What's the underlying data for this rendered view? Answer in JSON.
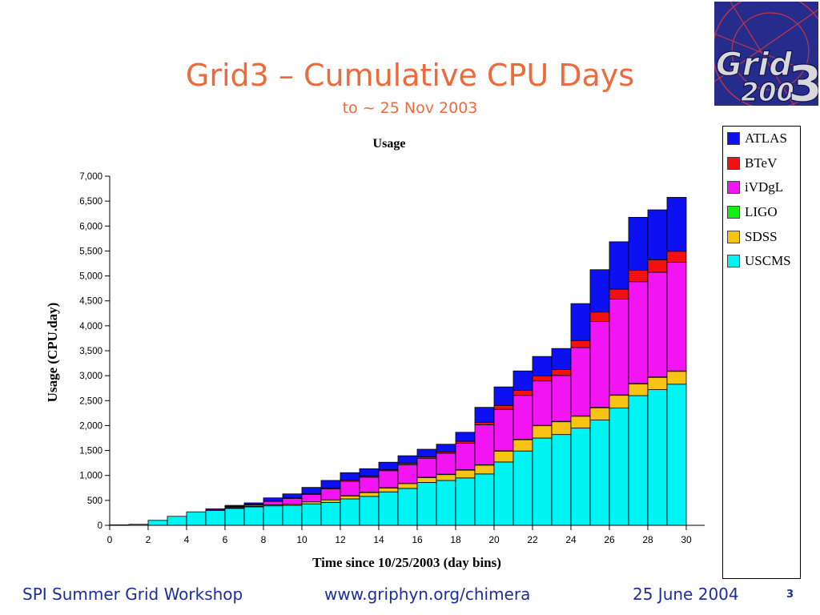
{
  "slide": {
    "title": "Grid3 – Cumulative CPU Days",
    "subtitle": "to ~ 25 Nov 2003",
    "logo_text": "Grid3 2003"
  },
  "footer": {
    "left": "SPI Summer Grid Workshop",
    "center": "www.griphyn.org/chimera",
    "right": "25 June 2004",
    "page_number": "3"
  },
  "colors": {
    "title": "#ee6a3a",
    "footer": "#1a2f9c"
  },
  "chart_data": {
    "type": "bar",
    "stacked": true,
    "title": "Usage",
    "xlabel": "Time since 10/25/2003 (day bins)",
    "ylabel": "Usage (CPU.day)",
    "ylim": [
      0,
      7000
    ],
    "xlim": [
      0,
      30
    ],
    "yticks": [
      "0",
      "500",
      "1,000",
      "1,500",
      "2,000",
      "2,500",
      "3,000",
      "3,500",
      "4,000",
      "4,500",
      "5,000",
      "5,500",
      "6,000",
      "6,500",
      "7,000"
    ],
    "xticks": [
      "0",
      "2",
      "4",
      "6",
      "8",
      "10",
      "12",
      "14",
      "16",
      "18",
      "20",
      "22",
      "24",
      "26",
      "28",
      "30"
    ],
    "legend_position": "right",
    "x": [
      1,
      2,
      3,
      4,
      5,
      6,
      7,
      8,
      9,
      10,
      11,
      12,
      13,
      14,
      15,
      16,
      17,
      18,
      19,
      20,
      21,
      22,
      23,
      24,
      25,
      26,
      27,
      28,
      29,
      30
    ],
    "series": [
      {
        "name": "USCMS",
        "color": "#00f4f4",
        "values": [
          10,
          20,
          100,
          180,
          270,
          300,
          340,
          370,
          390,
          400,
          430,
          460,
          530,
          580,
          670,
          740,
          860,
          900,
          950,
          1030,
          1270,
          1490,
          1750,
          1820,
          1950,
          2110,
          2350,
          2600,
          2720,
          2830
        ]
      },
      {
        "name": "SDSS",
        "color": "#f7c414",
        "values": [
          0,
          0,
          0,
          0,
          0,
          0,
          10,
          10,
          20,
          20,
          40,
          50,
          60,
          80,
          80,
          100,
          100,
          120,
          160,
          180,
          220,
          230,
          250,
          260,
          240,
          250,
          260,
          240,
          250,
          260
        ]
      },
      {
        "name": "LIGO",
        "color": "#11ee11",
        "values": [
          0,
          0,
          0,
          0,
          0,
          0,
          0,
          0,
          0,
          0,
          0,
          0,
          5,
          5,
          5,
          5,
          5,
          5,
          5,
          5,
          5,
          5,
          5,
          5,
          5,
          5,
          5,
          5,
          5,
          5
        ]
      },
      {
        "name": "iVDgL",
        "color": "#f214f2",
        "values": [
          0,
          0,
          0,
          0,
          0,
          20,
          20,
          30,
          70,
          120,
          150,
          220,
          290,
          300,
          340,
          370,
          380,
          420,
          530,
          800,
          830,
          880,
          890,
          920,
          1370,
          1720,
          1920,
          2040,
          2100,
          2180
        ]
      },
      {
        "name": "BTeV",
        "color": "#f21010",
        "values": [
          0,
          0,
          0,
          0,
          0,
          0,
          10,
          10,
          10,
          10,
          10,
          20,
          20,
          20,
          20,
          30,
          30,
          30,
          40,
          50,
          80,
          100,
          100,
          120,
          140,
          190,
          200,
          230,
          250,
          220
        ]
      },
      {
        "name": "ATLAS",
        "color": "#0d10f0",
        "values": [
          0,
          0,
          0,
          0,
          0,
          10,
          20,
          30,
          60,
          80,
          130,
          150,
          150,
          150,
          150,
          150,
          150,
          150,
          180,
          300,
          370,
          390,
          390,
          420,
          740,
          850,
          950,
          1060,
          1000,
          1080
        ]
      }
    ]
  }
}
